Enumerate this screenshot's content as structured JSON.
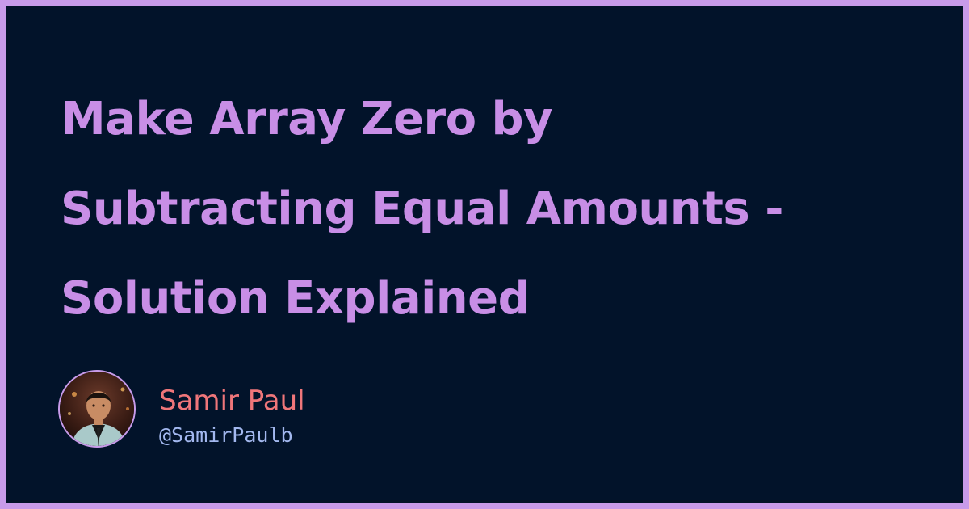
{
  "post": {
    "title_lines": [
      "Make Array Zero by",
      "Subtracting Equal Amounts -",
      "Solution Explained"
    ]
  },
  "author": {
    "name": "Samir Paul",
    "handle": "@SamirPaulb",
    "avatar_icon": "person-photo"
  },
  "colors": {
    "border": "#c89bea",
    "background": "#02132a",
    "title": "#c88ee6",
    "name": "#ef767a",
    "handle": "#a3b8ef"
  }
}
